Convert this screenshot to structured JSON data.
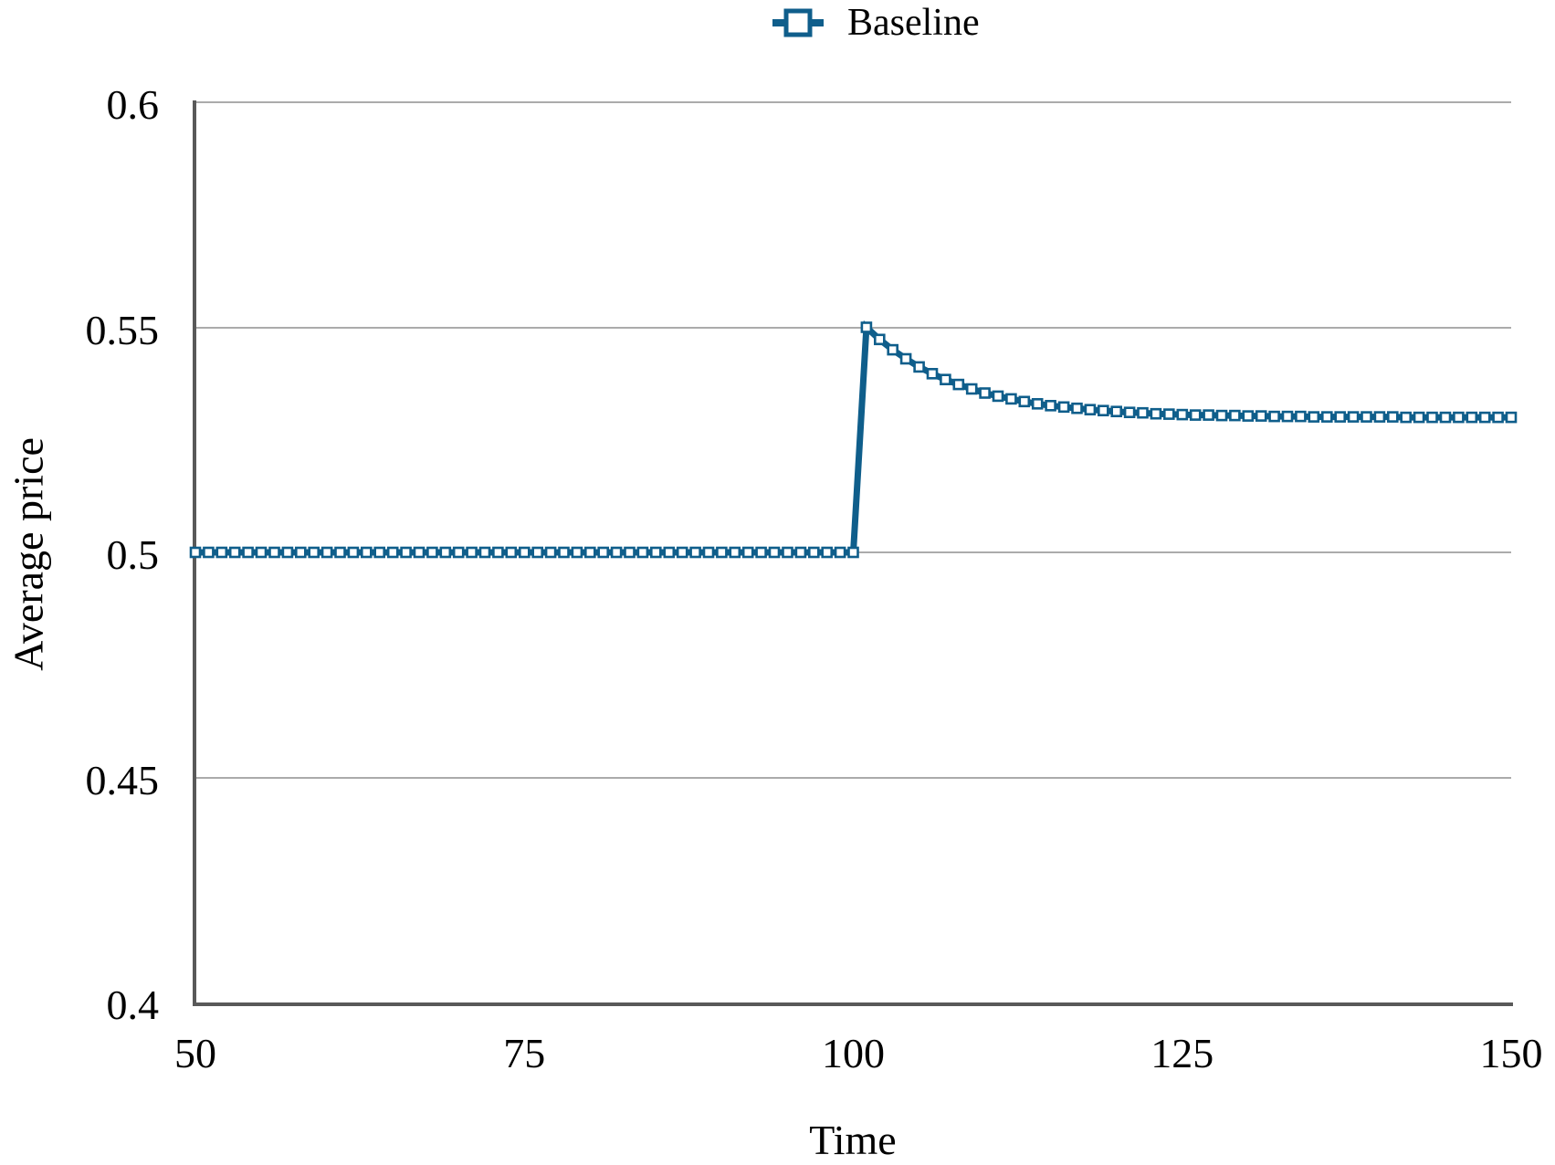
{
  "colors": {
    "series": "#0F5E8B",
    "marker_fill": "#FFFFFF",
    "gridline": "#ABABAB",
    "axis": "#595959",
    "text": "#000000",
    "background": "#FFFFFF"
  },
  "legend": {
    "marker_icon": "open-square-on-line",
    "label": "Baseline"
  },
  "chart_data": {
    "type": "line",
    "title": "",
    "xlabel": "Time",
    "ylabel": "Average price",
    "xlim": [
      50,
      150
    ],
    "ylim": [
      0.4,
      0.6
    ],
    "xticks": [
      50,
      75,
      100,
      125,
      150
    ],
    "xtick_labels": [
      "50",
      "75",
      "100",
      "125",
      "150"
    ],
    "yticks": [
      0.4,
      0.45,
      0.5,
      0.55,
      0.6
    ],
    "ytick_labels": [
      "0.4",
      "0.45",
      "0.5",
      "0.55",
      "0.6"
    ],
    "grid": "horizontal",
    "legend_position": "top-center",
    "series": [
      {
        "name": "Baseline",
        "color": "#0F5E8B",
        "marker": "open-square",
        "points": [
          [
            50,
            0.5
          ],
          [
            51,
            0.5
          ],
          [
            52,
            0.5
          ],
          [
            53,
            0.5
          ],
          [
            54,
            0.5
          ],
          [
            55,
            0.5
          ],
          [
            56,
            0.5
          ],
          [
            57,
            0.5
          ],
          [
            58,
            0.5
          ],
          [
            59,
            0.5
          ],
          [
            60,
            0.5
          ],
          [
            61,
            0.5
          ],
          [
            62,
            0.5
          ],
          [
            63,
            0.5
          ],
          [
            64,
            0.5
          ],
          [
            65,
            0.5
          ],
          [
            66,
            0.5
          ],
          [
            67,
            0.5
          ],
          [
            68,
            0.5
          ],
          [
            69,
            0.5
          ],
          [
            70,
            0.5
          ],
          [
            71,
            0.5
          ],
          [
            72,
            0.5
          ],
          [
            73,
            0.5
          ],
          [
            74,
            0.5
          ],
          [
            75,
            0.5
          ],
          [
            76,
            0.5
          ],
          [
            77,
            0.5
          ],
          [
            78,
            0.5
          ],
          [
            79,
            0.5
          ],
          [
            80,
            0.5
          ],
          [
            81,
            0.5
          ],
          [
            82,
            0.5
          ],
          [
            83,
            0.5
          ],
          [
            84,
            0.5
          ],
          [
            85,
            0.5
          ],
          [
            86,
            0.5
          ],
          [
            87,
            0.5
          ],
          [
            88,
            0.5
          ],
          [
            89,
            0.5
          ],
          [
            90,
            0.5
          ],
          [
            91,
            0.5
          ],
          [
            92,
            0.5
          ],
          [
            93,
            0.5
          ],
          [
            94,
            0.5
          ],
          [
            95,
            0.5
          ],
          [
            96,
            0.5
          ],
          [
            97,
            0.5
          ],
          [
            98,
            0.5
          ],
          [
            99,
            0.5
          ],
          [
            100,
            0.5
          ],
          [
            101,
            0.55
          ],
          [
            102,
            0.5473
          ],
          [
            103,
            0.545
          ],
          [
            104,
            0.543
          ],
          [
            105,
            0.5412
          ],
          [
            106,
            0.5397
          ],
          [
            107,
            0.5384
          ],
          [
            108,
            0.5373
          ],
          [
            109,
            0.5363
          ],
          [
            110,
            0.5354
          ],
          [
            111,
            0.5347
          ],
          [
            112,
            0.5341
          ],
          [
            113,
            0.5335
          ],
          [
            114,
            0.533
          ],
          [
            115,
            0.5326
          ],
          [
            116,
            0.5323
          ],
          [
            117,
            0.532
          ],
          [
            118,
            0.5317
          ],
          [
            119,
            0.5315
          ],
          [
            120,
            0.5313
          ],
          [
            121,
            0.5311
          ],
          [
            122,
            0.531
          ],
          [
            123,
            0.5308
          ],
          [
            124,
            0.5307
          ],
          [
            125,
            0.5306
          ],
          [
            126,
            0.5305
          ],
          [
            127,
            0.5305
          ],
          [
            128,
            0.5304
          ],
          [
            129,
            0.5304
          ],
          [
            130,
            0.5303
          ],
          [
            131,
            0.5303
          ],
          [
            132,
            0.5302
          ],
          [
            133,
            0.5302
          ],
          [
            134,
            0.5302
          ],
          [
            135,
            0.5301
          ],
          [
            136,
            0.5301
          ],
          [
            137,
            0.5301
          ],
          [
            138,
            0.5301
          ],
          [
            139,
            0.5301
          ],
          [
            140,
            0.5301
          ],
          [
            141,
            0.5301
          ],
          [
            142,
            0.53
          ],
          [
            143,
            0.53
          ],
          [
            144,
            0.53
          ],
          [
            145,
            0.53
          ],
          [
            146,
            0.53
          ],
          [
            147,
            0.53
          ],
          [
            148,
            0.53
          ],
          [
            149,
            0.53
          ],
          [
            150,
            0.53
          ]
        ]
      }
    ]
  }
}
